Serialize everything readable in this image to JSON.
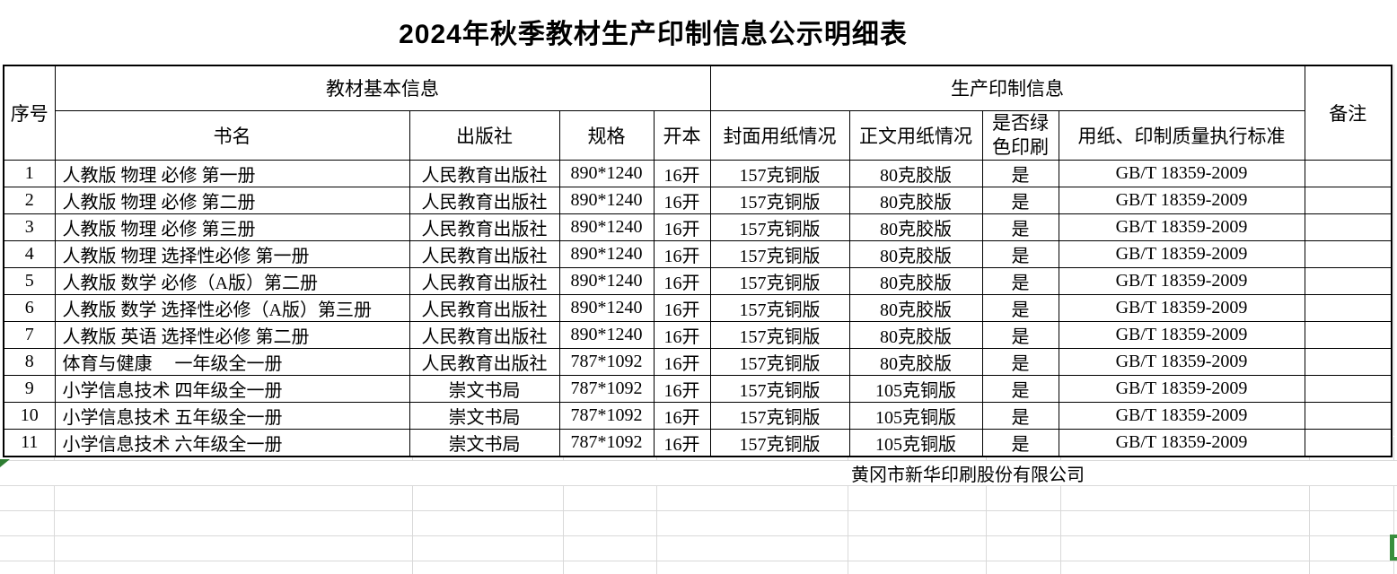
{
  "title": "2024年秋季教材生产印制信息公示明细表",
  "table": {
    "header": {
      "seq": "序号",
      "basic_group": "教材基本信息",
      "production_group": "生产印制信息",
      "book": "书名",
      "publisher": "出版社",
      "spec": "规格",
      "format": "开本",
      "cover": "封面用纸情况",
      "body": "正文用纸情况",
      "green": "是否绿色印刷",
      "standard": "用纸、印制质量执行标准",
      "remark": "备注"
    },
    "rows": [
      {
        "seq": "1",
        "book": "人教版 物理 必修 第一册",
        "publisher": "人民教育出版社",
        "spec": "890*1240",
        "format": "16开",
        "cover": "157克铜版",
        "body": "80克胶版",
        "green": "是",
        "standard": "GB/T 18359-2009",
        "remark": ""
      },
      {
        "seq": "2",
        "book": "人教版 物理 必修 第二册",
        "publisher": "人民教育出版社",
        "spec": "890*1240",
        "format": "16开",
        "cover": "157克铜版",
        "body": "80克胶版",
        "green": "是",
        "standard": "GB/T 18359-2009",
        "remark": ""
      },
      {
        "seq": "3",
        "book": "人教版 物理 必修 第三册",
        "publisher": "人民教育出版社",
        "spec": "890*1240",
        "format": "16开",
        "cover": "157克铜版",
        "body": "80克胶版",
        "green": "是",
        "standard": "GB/T 18359-2009",
        "remark": ""
      },
      {
        "seq": "4",
        "book": "人教版 物理 选择性必修 第一册",
        "publisher": "人民教育出版社",
        "spec": "890*1240",
        "format": "16开",
        "cover": "157克铜版",
        "body": "80克胶版",
        "green": "是",
        "standard": "GB/T 18359-2009",
        "remark": ""
      },
      {
        "seq": "5",
        "book": "人教版 数学 必修（A版）第二册",
        "publisher": "人民教育出版社",
        "spec": "890*1240",
        "format": "16开",
        "cover": "157克铜版",
        "body": "80克胶版",
        "green": "是",
        "standard": "GB/T 18359-2009",
        "remark": ""
      },
      {
        "seq": "6",
        "book": "人教版 数学 选择性必修（A版）第三册",
        "publisher": "人民教育出版社",
        "spec": "890*1240",
        "format": "16开",
        "cover": "157克铜版",
        "body": "80克胶版",
        "green": "是",
        "standard": "GB/T 18359-2009",
        "remark": ""
      },
      {
        "seq": "7",
        "book": "人教版 英语 选择性必修 第二册",
        "publisher": "人民教育出版社",
        "spec": "890*1240",
        "format": "16开",
        "cover": "157克铜版",
        "body": "80克胶版",
        "green": "是",
        "standard": "GB/T 18359-2009",
        "remark": ""
      },
      {
        "seq": "8",
        "book": "体育与健康　 一年级全一册",
        "publisher": "人民教育出版社",
        "spec": "787*1092",
        "format": "16开",
        "cover": "157克铜版",
        "body": "80克胶版",
        "green": "是",
        "standard": "GB/T 18359-2009",
        "remark": ""
      },
      {
        "seq": "9",
        "book": "小学信息技术 四年级全一册",
        "publisher": "崇文书局",
        "spec": "787*1092",
        "format": "16开",
        "cover": "157克铜版",
        "body": "105克铜版",
        "green": "是",
        "standard": "GB/T 18359-2009",
        "remark": ""
      },
      {
        "seq": "10",
        "book": "小学信息技术 五年级全一册",
        "publisher": "崇文书局",
        "spec": "787*1092",
        "format": "16开",
        "cover": "157克铜版",
        "body": "105克铜版",
        "green": "是",
        "standard": "GB/T 18359-2009",
        "remark": ""
      },
      {
        "seq": "11",
        "book": "小学信息技术 六年级全一册",
        "publisher": "崇文书局",
        "spec": "787*1092",
        "format": "16开",
        "cover": "157克铜版",
        "body": "105克铜版",
        "green": "是",
        "standard": "GB/T 18359-2009",
        "remark": ""
      }
    ]
  },
  "footer": {
    "company": "黄冈市新华印刷股份有限公司"
  },
  "colors": {
    "table_border": "#000000",
    "sheet_gridline": "#d9d9d9",
    "selection_green": "#388e3c",
    "marker_green": "#2e7d32"
  },
  "icons": {
    "marker": "green-triangle-marker-icon",
    "selection": "cell-selection-border-icon"
  }
}
